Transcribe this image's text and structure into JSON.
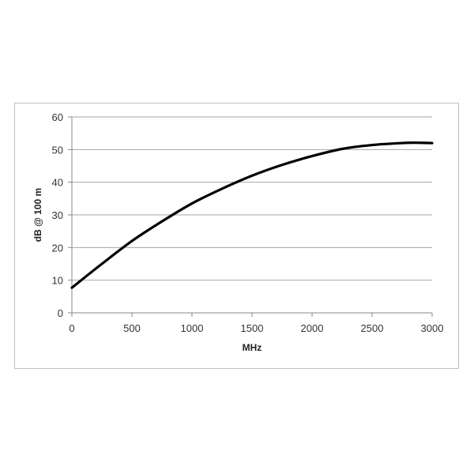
{
  "chart_data": {
    "type": "line",
    "title": "",
    "xlabel": "MHz",
    "ylabel": "dB @ 100 m",
    "xlim": [
      0,
      3000
    ],
    "ylim": [
      0,
      60
    ],
    "xticks": [
      "0",
      "500",
      "1000",
      "1500",
      "2000",
      "2500",
      "3000"
    ],
    "yticks": [
      "0",
      "10",
      "20",
      "30",
      "40",
      "50",
      "60"
    ],
    "grid": "horizontal",
    "legend": "none",
    "series": [
      {
        "color": "#000000",
        "x": [
          0,
          250,
          500,
          750,
          1000,
          1250,
          1500,
          1750,
          2000,
          2250,
          2500,
          2750,
          2850,
          3000
        ],
        "y": [
          7.7,
          15,
          22,
          28,
          33.5,
          38,
          42,
          45.3,
          48,
          50.2,
          51.4,
          52,
          52.1,
          52
        ]
      }
    ]
  }
}
